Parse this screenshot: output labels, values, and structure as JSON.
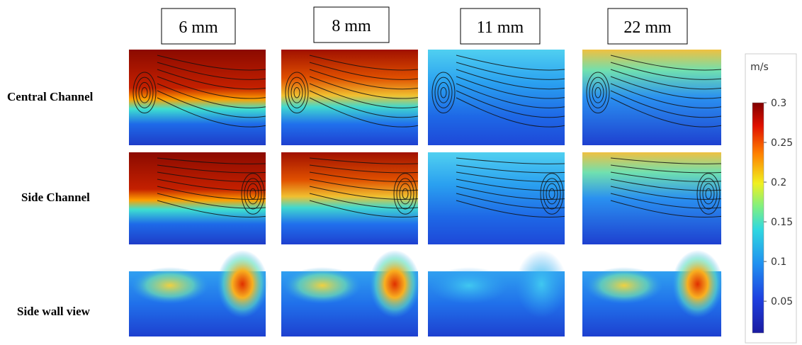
{
  "headers": [
    "6 mm",
    "8 mm",
    "11 mm",
    "22 mm"
  ],
  "rows": [
    "Central Channel",
    "Side Channel",
    "Side wall view"
  ],
  "colorbar": {
    "unit": "m/s",
    "lim": [
      0.01,
      0.3
    ],
    "ticks": [
      0.3,
      0.25,
      0.2,
      0.15,
      0.1,
      0.05
    ]
  }
}
